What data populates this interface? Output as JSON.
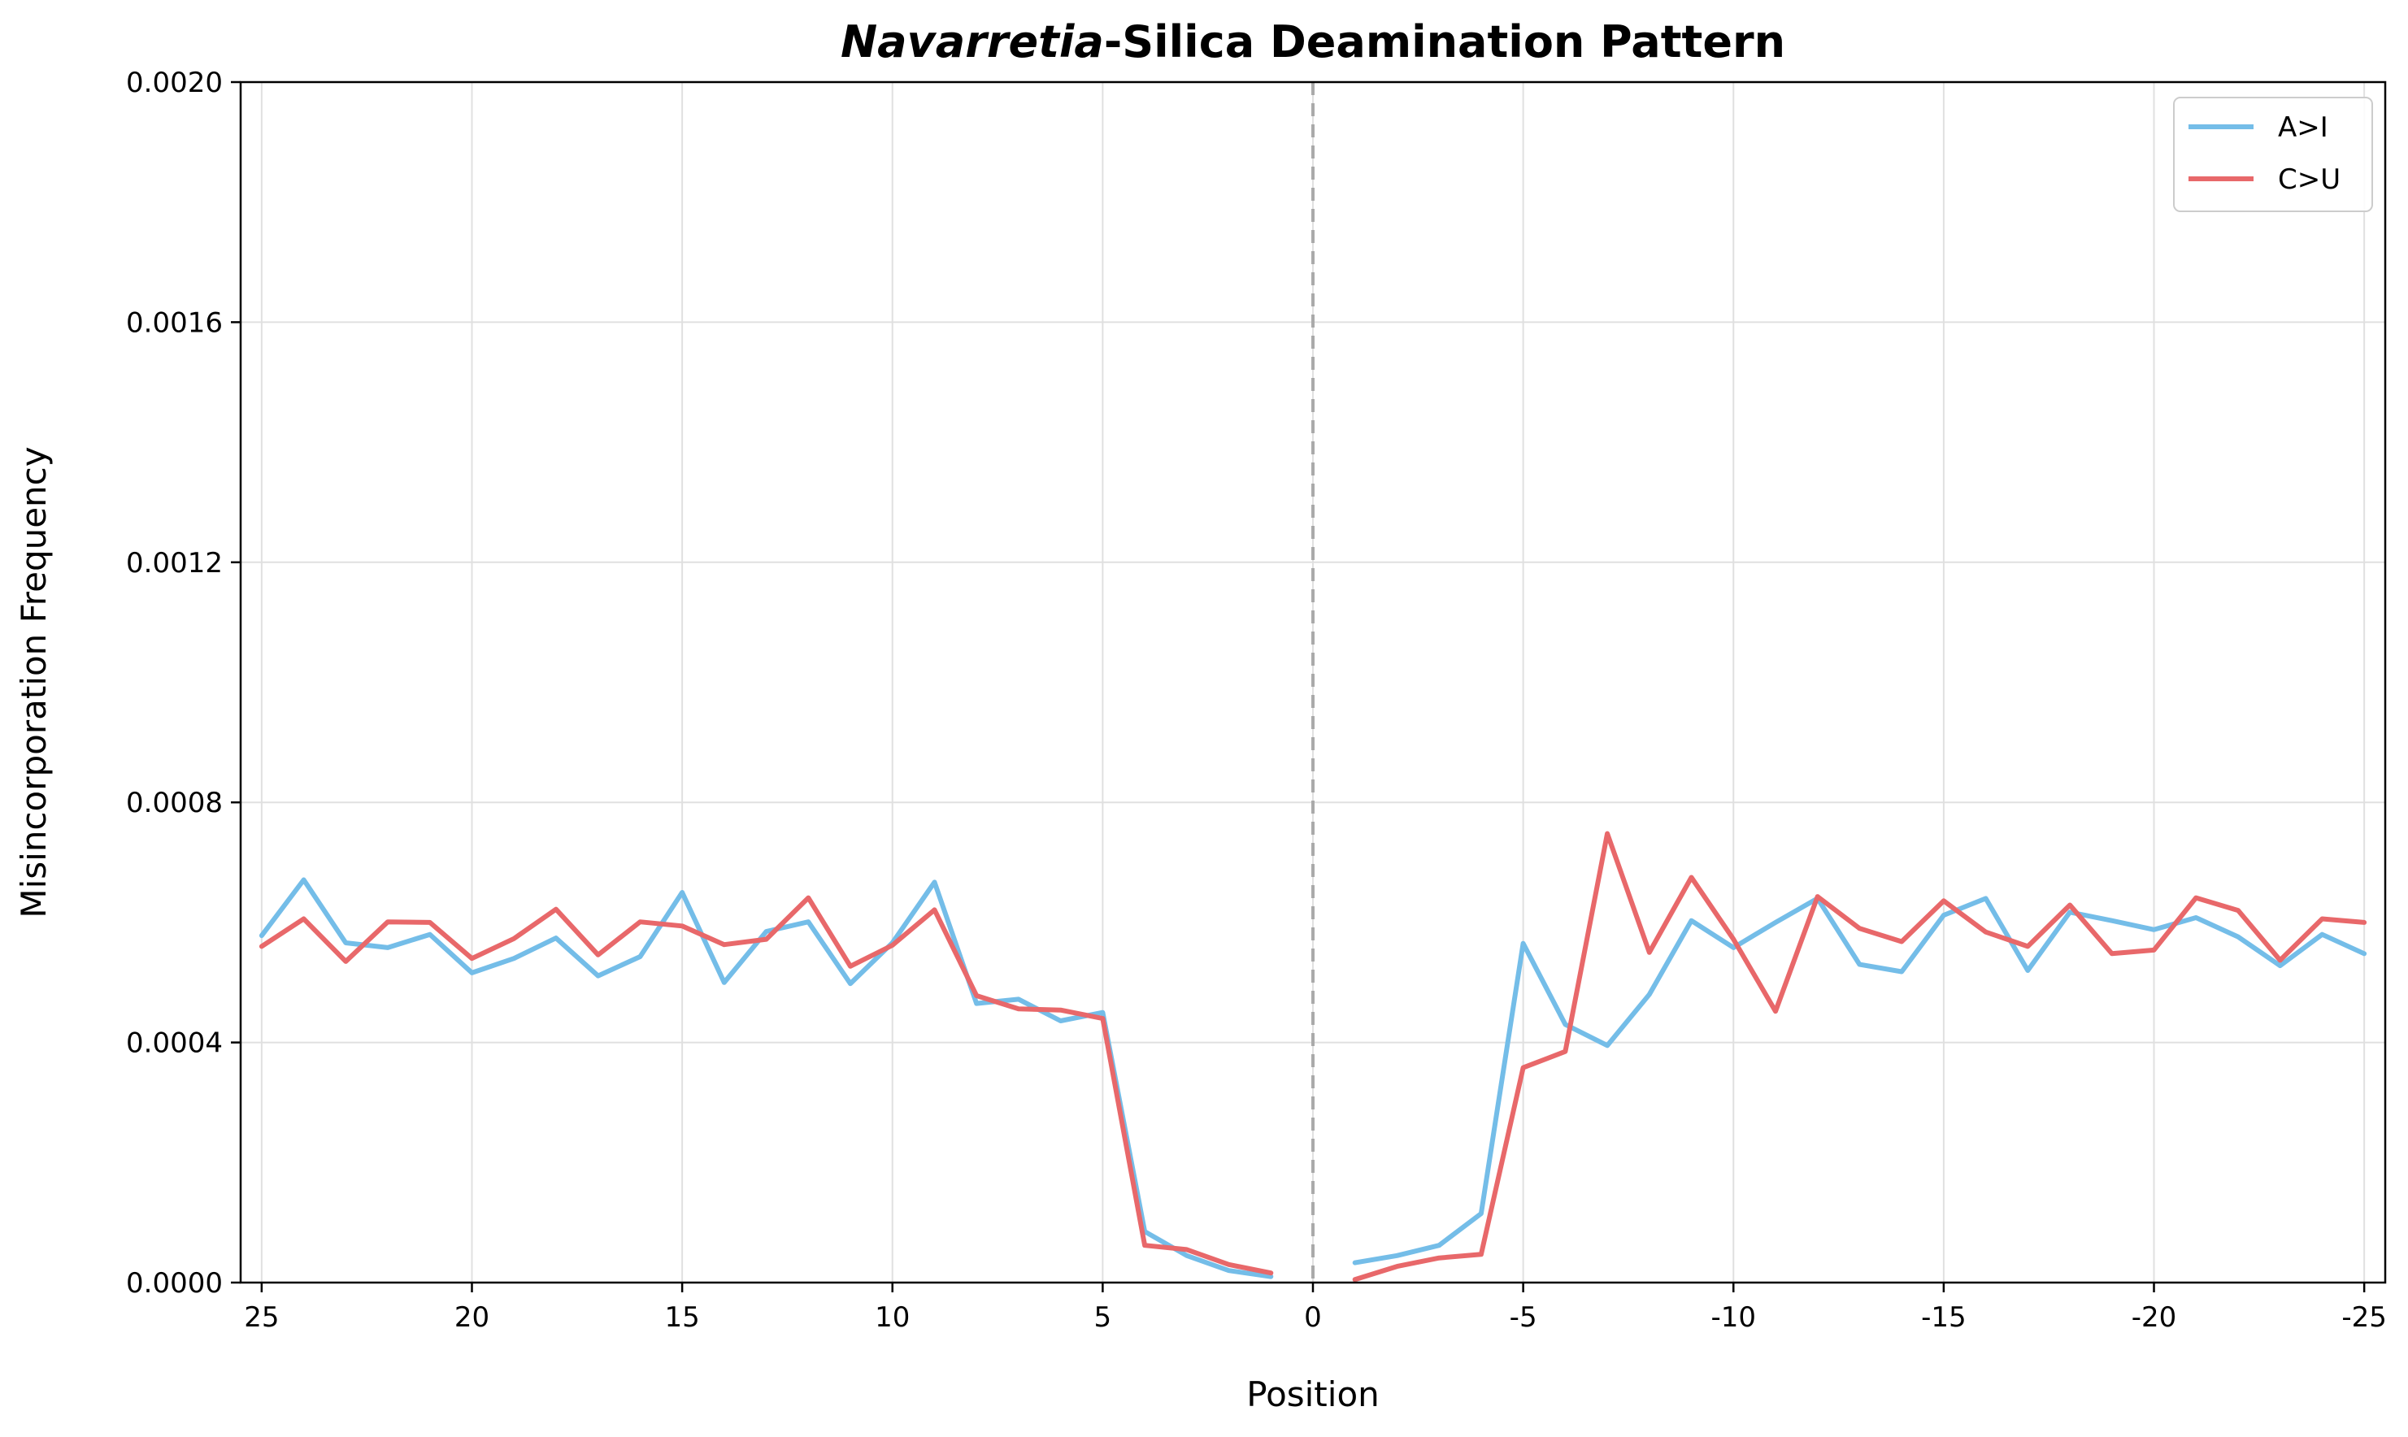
{
  "chart_data": {
    "type": "line",
    "title_italic": "Navarretia",
    "title_rest": "-Silica Deamination Pattern",
    "xlabel": "Position",
    "ylabel": "Misincorporation Frequency",
    "xlim": [
      25.5,
      -25.5
    ],
    "ylim": [
      0,
      0.002
    ],
    "x_ticks": [
      25,
      20,
      15,
      10,
      5,
      0,
      -5,
      -10,
      -15,
      -20,
      -25
    ],
    "x_tick_labels": [
      "25",
      "20",
      "15",
      "10",
      "5",
      "0",
      "-5",
      "-10",
      "-15",
      "-20",
      "-25"
    ],
    "y_ticks": [
      0,
      0.0004,
      0.0008,
      0.0012,
      0.0016,
      0.002
    ],
    "y_tick_labels": [
      "0.0000",
      "0.0004",
      "0.0008",
      "0.0012",
      "0.0016",
      "0.0020"
    ],
    "grid": true,
    "legend_position": "top-right",
    "center_line": {
      "x": 0,
      "color": "#aaaaaa",
      "style": "dashed"
    },
    "series": [
      {
        "name": "A>I",
        "color": "#74bde8",
        "segments": [
          {
            "x": [
              25,
              24,
              23,
              22,
              21,
              20,
              19,
              18,
              17,
              16,
              15,
              14,
              13,
              12,
              11,
              10,
              9,
              8,
              7,
              6,
              5,
              4,
              3,
              2,
              1
            ],
            "y": [
              0.000578,
              0.000671,
              0.000566,
              0.000558,
              0.00058,
              0.000516,
              0.00054,
              0.000574,
              0.000511,
              0.000543,
              0.00065,
              0.0005,
              0.000585,
              0.000601,
              0.000498,
              0.000566,
              0.000667,
              0.000465,
              0.000472,
              0.000436,
              0.00045,
              8.5e-05,
              4.5e-05,
              2e-05,
              1e-05
            ]
          },
          {
            "x": [
              -1,
              -2,
              -3,
              -4,
              -5,
              -6,
              -7,
              -8,
              -9,
              -10,
              -11,
              -12,
              -13,
              -14,
              -15,
              -16,
              -17,
              -18,
              -19,
              -20,
              -21,
              -22,
              -23,
              -24,
              -25
            ],
            "y": [
              3.3e-05,
              4.5e-05,
              6.2e-05,
              0.000115,
              0.000565,
              0.00043,
              0.000395,
              0.00048,
              0.000603,
              0.000558,
              0.0006,
              0.00064,
              0.00053,
              0.000518,
              0.000612,
              0.00064,
              0.00052,
              0.000617,
              0.000603,
              0.000588,
              0.000608,
              0.000576,
              0.000528,
              0.00058,
              0.000548
            ]
          }
        ]
      },
      {
        "name": "C>U",
        "color": "#e8686a",
        "segments": [
          {
            "x": [
              25,
              24,
              23,
              22,
              21,
              20,
              19,
              18,
              17,
              16,
              15,
              14,
              13,
              12,
              11,
              10,
              9,
              8,
              7,
              6,
              5,
              4,
              3,
              2,
              1
            ],
            "y": [
              0.00056,
              0.000606,
              0.000535,
              0.000601,
              0.0006,
              0.00054,
              0.000573,
              0.000622,
              0.000546,
              0.000601,
              0.000594,
              0.000563,
              0.000572,
              0.000641,
              0.000527,
              0.000562,
              0.000621,
              0.000478,
              0.000456,
              0.000454,
              0.00044,
              6.2e-05,
              5.5e-05,
              3e-05,
              1.6e-05
            ]
          },
          {
            "x": [
              -1,
              -2,
              -3,
              -4,
              -5,
              -6,
              -7,
              -8,
              -9,
              -10,
              -11,
              -12,
              -13,
              -14,
              -15,
              -16,
              -17,
              -18,
              -19,
              -20,
              -21,
              -22,
              -23,
              -24,
              -25
            ],
            "y": [
              5e-06,
              2.7e-05,
              4.1e-05,
              4.7e-05,
              0.000358,
              0.000385,
              0.000748,
              0.00055,
              0.000675,
              0.000572,
              0.000452,
              0.000643,
              0.00059,
              0.000568,
              0.000636,
              0.000584,
              0.00056,
              0.000629,
              0.000548,
              0.000554,
              0.000641,
              0.00062,
              0.000537,
              0.000606,
              0.0006
            ]
          }
        ]
      }
    ]
  }
}
